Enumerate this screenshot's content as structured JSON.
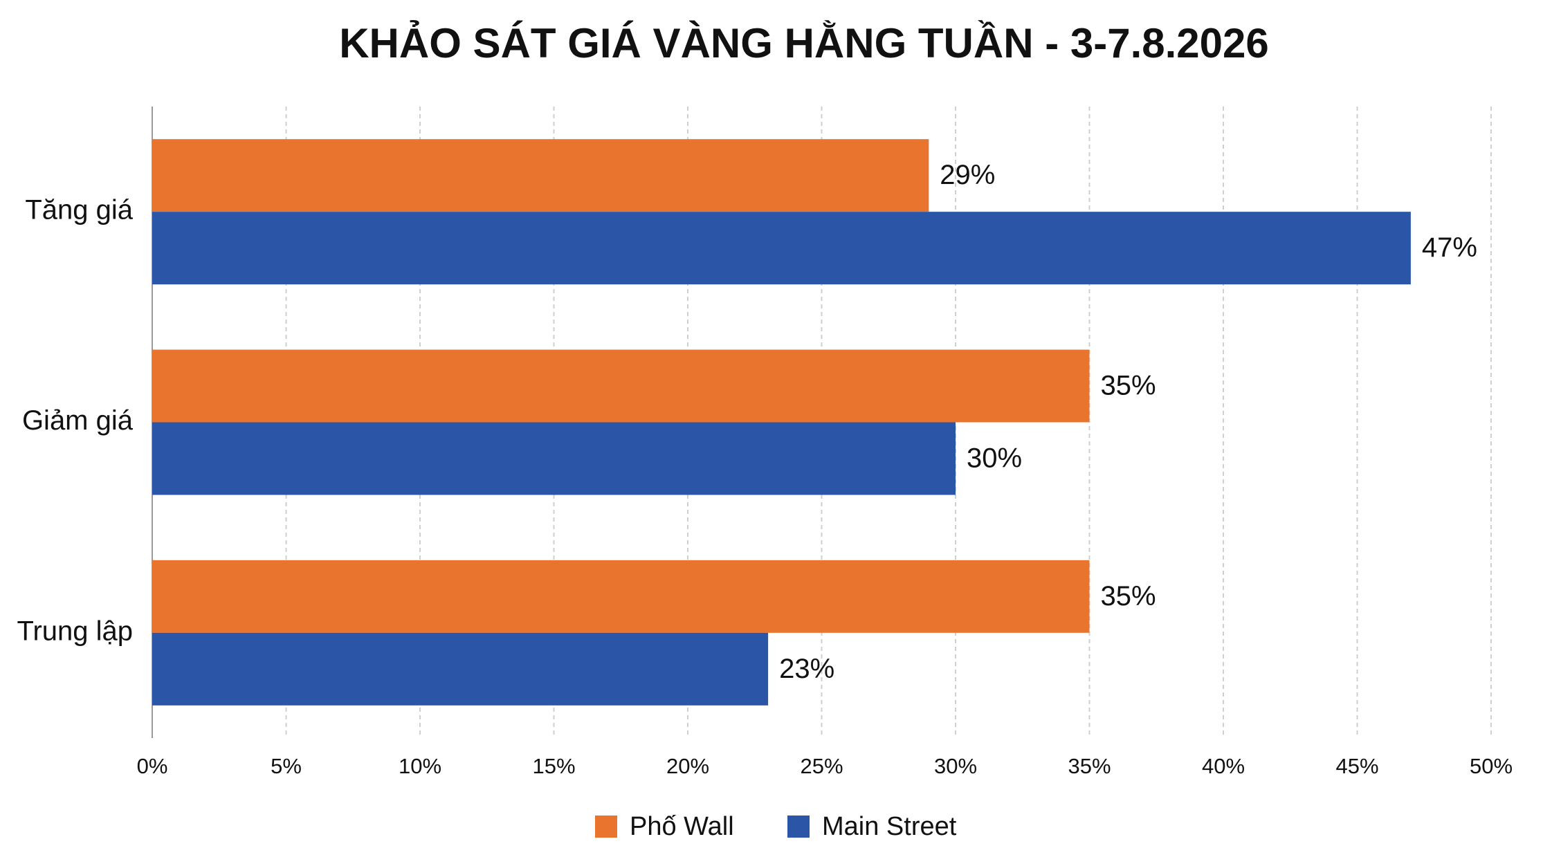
{
  "chart_data": {
    "type": "bar",
    "orientation": "horizontal",
    "title": "KHẢO SÁT GIÁ VÀNG HẰNG TUẦN - 3-7.8.2026",
    "categories": [
      "Tăng giá",
      "Giảm giá",
      "Trung lập"
    ],
    "series": [
      {
        "name": "Phố Wall",
        "color": "#e8742e",
        "values": [
          29,
          35,
          35
        ],
        "value_labels": [
          "29%",
          "35%",
          "35%"
        ]
      },
      {
        "name": "Main Street",
        "color": "#2b56a8",
        "values": [
          47,
          30,
          23
        ],
        "value_labels": [
          "47%",
          "30%",
          "23%"
        ]
      }
    ],
    "xlim": [
      0,
      50
    ],
    "xticks": [
      {
        "value": 0,
        "label": "0%"
      },
      {
        "value": 5,
        "label": "5%"
      },
      {
        "value": 10,
        "label": "10%"
      },
      {
        "value": 15,
        "label": "15%"
      },
      {
        "value": 20,
        "label": "20%"
      },
      {
        "value": 25,
        "label": "25%"
      },
      {
        "value": 30,
        "label": "30%"
      },
      {
        "value": 35,
        "label": "35%"
      },
      {
        "value": 40,
        "label": "40%"
      },
      {
        "value": 45,
        "label": "45%"
      },
      {
        "value": 50,
        "label": "50%"
      }
    ],
    "grid": true,
    "legend": "bottom"
  }
}
